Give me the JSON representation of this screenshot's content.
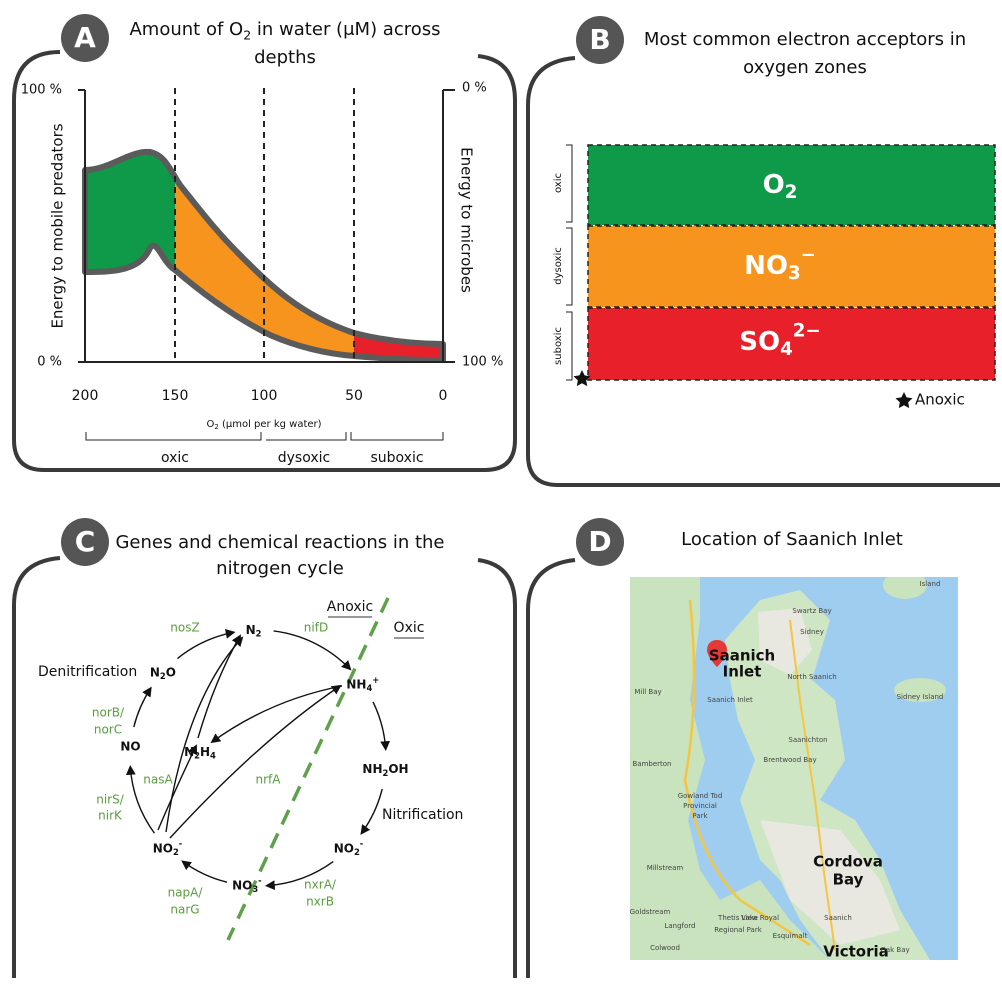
{
  "panel_a": {
    "badge": "A",
    "title": [
      "Amount of O",
      "2",
      " in water (μM) across"
    ],
    "title_line2": "depths",
    "y_left_ticks": [
      "100 %",
      "0 %"
    ],
    "y_right_ticks": [
      "0 %",
      "100 %"
    ],
    "y_left_label": "Energy to mobile predators",
    "y_right_label": "Energy to microbes",
    "x_ticks": [
      200,
      150,
      100,
      50,
      0
    ],
    "x_label": [
      "O",
      "2",
      " (μmol per kg water)"
    ],
    "zones": [
      "oxic",
      "dysoxic",
      "suboxic"
    ]
  },
  "panel_b": {
    "badge": "B",
    "title": "Most common electron acceptors in",
    "title_line2": "oxygen zones",
    "acceptors": [
      [
        "O",
        "2"
      ],
      [
        "NO",
        "3",
        "−"
      ],
      [
        "SO",
        "4",
        "2−"
      ]
    ],
    "zones": [
      "oxic",
      "dysoxic",
      "suboxic"
    ],
    "legend": "Anoxic"
  },
  "panel_c": {
    "badge": "C",
    "title": "Genes and chemical reactions in the",
    "title_line2": "nitrogen cycle",
    "nodes": [
      [
        "N",
        "2"
      ],
      [
        "NH",
        "4",
        "+"
      ],
      [
        "NH",
        "2",
        "OH"
      ],
      [
        "NO",
        "2",
        "-"
      ],
      [
        "NO",
        "3",
        "-"
      ],
      [
        "NO",
        "2",
        "-"
      ],
      "NO",
      [
        "N",
        "2",
        "O"
      ],
      [
        "N",
        "2",
        "H",
        "4"
      ]
    ],
    "genes": [
      "nosZ",
      "nifD",
      "norB/",
      "norC",
      "nasA",
      "nrfA",
      "nirS/",
      "nirK",
      "napA/",
      "narG",
      "nxrA/",
      "nxrB"
    ],
    "processes": [
      "Denitrification",
      "Nitrification"
    ],
    "zones": [
      "Anoxic",
      "Oxic"
    ]
  },
  "panel_d": {
    "badge": "D",
    "title": "Location of Saanich Inlet",
    "map_labels": [
      "Saanich",
      "Inlet",
      "Cordova",
      "Bay",
      "Victoria"
    ],
    "minor_labels": [
      "Island",
      "Swartz Bay",
      "Sidney",
      "North Saanich",
      "Sidney Island",
      "Mill Bay",
      "Saanich Inlet",
      "Bamberton",
      "Saanichton",
      "Brentwood Bay",
      "Gowland Tod",
      "Provincial",
      "Park",
      "Millstream",
      "Thetis Lake",
      "Regional Park",
      "Goldstream",
      "Langford",
      "View Royal",
      "Saanich",
      "Esquimalt",
      "Colwood",
      "Oak Bay"
    ]
  }
}
